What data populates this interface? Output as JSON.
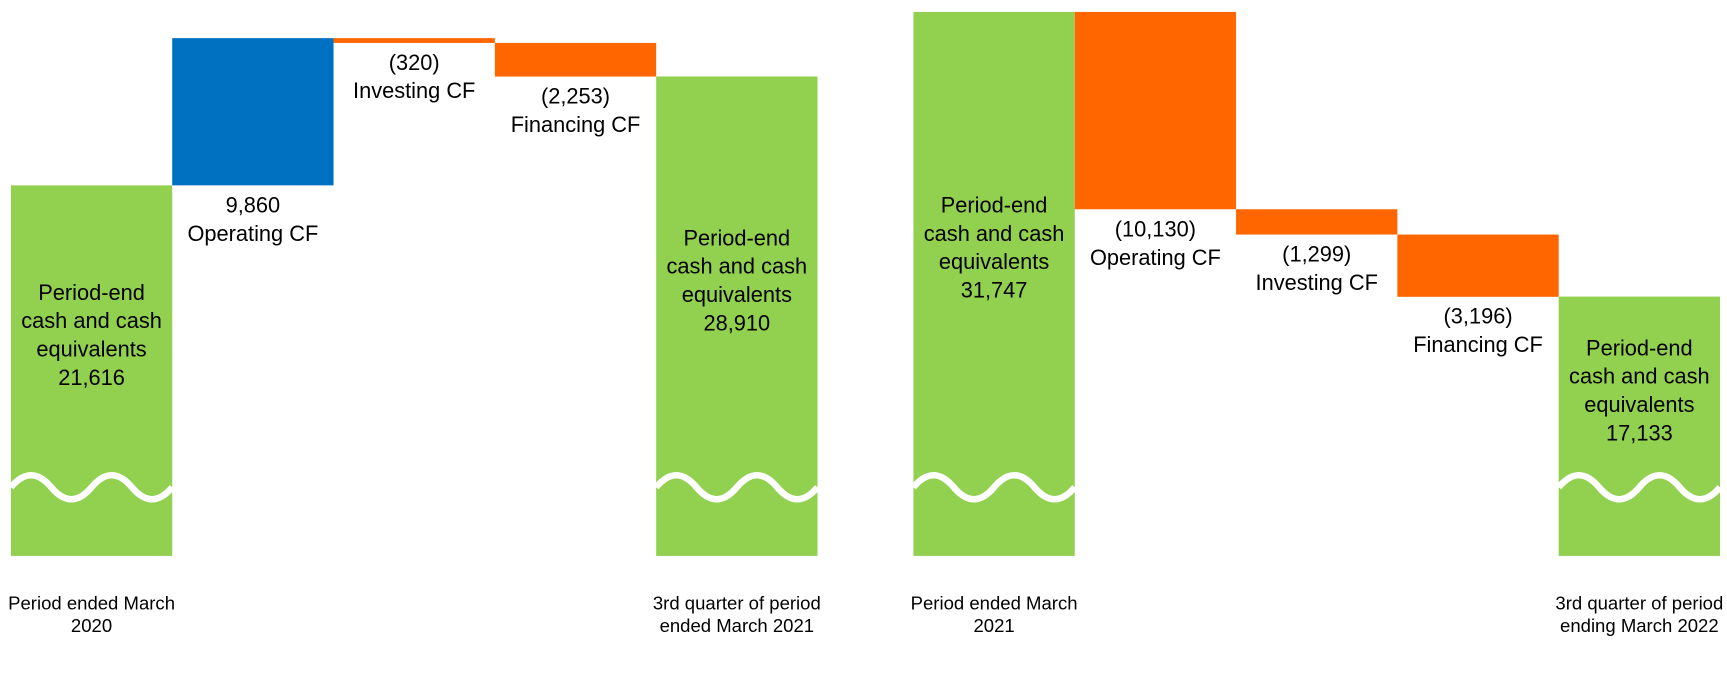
{
  "chart_data": [
    {
      "type": "waterfall",
      "categories": [
        "Period ended March 2020",
        null,
        null,
        null,
        "3rd quarter of period ended March 2021"
      ],
      "bar_labels": [
        "Period-end cash and cash equivalents",
        "Operating CF",
        "Investing CF",
        "Financing CF",
        "Period-end cash and cash equivalents"
      ],
      "values": [
        21616,
        9860,
        -320,
        -2253,
        28910
      ],
      "value_labels": [
        "21,616",
        "9,860",
        "(320)",
        "(2,253)",
        "28,910"
      ],
      "measures": [
        "absolute",
        "relative",
        "relative",
        "relative",
        "total"
      ],
      "colors": [
        "#92d050",
        "#0070c0",
        "#ff6600",
        "#ff6600",
        "#92d050"
      ],
      "ylim": [
        -3200,
        34030
      ]
    },
    {
      "type": "waterfall",
      "categories": [
        "Period ended March 2021",
        null,
        null,
        null,
        "3rd quarter of period ending March 2022"
      ],
      "bar_labels": [
        "Period-end cash and cash equivalents",
        "Operating CF",
        "Investing CF",
        "Financing CF",
        "Period-end cash and cash equivalents"
      ],
      "values": [
        31747,
        -10130,
        -1299,
        -3196,
        17133
      ],
      "value_labels": [
        "31,747",
        "(10,130)",
        "(1,299)",
        "(3,196)",
        "17,133"
      ],
      "measures": [
        "absolute",
        "relative",
        "relative",
        "relative",
        "total"
      ],
      "colors": [
        "#92d050",
        "#ff6600",
        "#ff6600",
        "#ff6600",
        "#92d050"
      ],
      "ylim": [
        3820,
        32360
      ]
    }
  ]
}
